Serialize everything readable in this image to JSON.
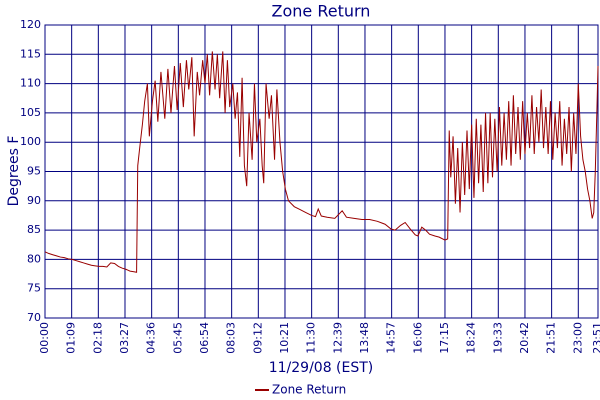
{
  "chart_data": {
    "type": "line",
    "title": "Zone Return",
    "x_label": "11/29/08 (EST)",
    "y_label": "Degrees F",
    "grid": true,
    "legend": "bottom",
    "xlim": [
      0,
      1431
    ],
    "ylim": [
      70,
      120
    ],
    "yticks": [
      70,
      75,
      80,
      85,
      90,
      95,
      100,
      105,
      110,
      115,
      120
    ],
    "xticks": [
      {
        "value": 0,
        "label": "00:00"
      },
      {
        "value": 69,
        "label": "01:09"
      },
      {
        "value": 138,
        "label": "02:18"
      },
      {
        "value": 207,
        "label": "03:27"
      },
      {
        "value": 276,
        "label": "04:36"
      },
      {
        "value": 345,
        "label": "05:45"
      },
      {
        "value": 414,
        "label": "06:54"
      },
      {
        "value": 483,
        "label": "08:03"
      },
      {
        "value": 552,
        "label": "09:12"
      },
      {
        "value": 621,
        "label": "10:21"
      },
      {
        "value": 690,
        "label": "11:30"
      },
      {
        "value": 759,
        "label": "12:39"
      },
      {
        "value": 828,
        "label": "13:48"
      },
      {
        "value": 897,
        "label": "14:57"
      },
      {
        "value": 966,
        "label": "16:06"
      },
      {
        "value": 1035,
        "label": "17:15"
      },
      {
        "value": 1104,
        "label": "18:24"
      },
      {
        "value": 1173,
        "label": "19:33"
      },
      {
        "value": 1242,
        "label": "20:42"
      },
      {
        "value": 1311,
        "label": "21:51"
      },
      {
        "value": 1380,
        "label": "23:00"
      },
      {
        "value": 1431,
        "label": "23:51"
      }
    ],
    "x": [
      0,
      10,
      20,
      30,
      40,
      50,
      60,
      70,
      80,
      90,
      100,
      110,
      120,
      130,
      140,
      150,
      160,
      170,
      180,
      190,
      200,
      210,
      220,
      230,
      237,
      240,
      245,
      252,
      258,
      265,
      270,
      278,
      285,
      292,
      300,
      310,
      318,
      326,
      335,
      342,
      350,
      358,
      366,
      372,
      380,
      386,
      394,
      400,
      408,
      414,
      420,
      426,
      433,
      440,
      446,
      452,
      460,
      466,
      472,
      478,
      486,
      492,
      498,
      504,
      510,
      516,
      522,
      528,
      536,
      542,
      548,
      556,
      562,
      566,
      572,
      580,
      586,
      594,
      600,
      608,
      615,
      622,
      630,
      645,
      660,
      675,
      690,
      700,
      707,
      715,
      730,
      750,
      769,
      780,
      800,
      820,
      840,
      860,
      880,
      895,
      906,
      920,
      932,
      945,
      958,
      965,
      975,
      985,
      995,
      1009,
      1020,
      1035,
      1042,
      1046,
      1050,
      1056,
      1062,
      1068,
      1074,
      1080,
      1086,
      1092,
      1098,
      1104,
      1110,
      1116,
      1122,
      1128,
      1134,
      1140,
      1146,
      1152,
      1158,
      1164,
      1170,
      1176,
      1182,
      1188,
      1194,
      1200,
      1206,
      1212,
      1218,
      1224,
      1230,
      1236,
      1242,
      1248,
      1254,
      1260,
      1266,
      1272,
      1278,
      1284,
      1290,
      1296,
      1302,
      1308,
      1314,
      1320,
      1326,
      1332,
      1338,
      1344,
      1350,
      1356,
      1362,
      1368,
      1374,
      1380,
      1386,
      1392,
      1398,
      1404,
      1410,
      1416,
      1420,
      1424,
      1428,
      1431
    ],
    "series": [
      {
        "name": "Zone Return",
        "color": "#990000",
        "values": [
          81.3,
          81,
          80.8,
          80.6,
          80.4,
          80.3,
          80.1,
          80,
          79.8,
          79.6,
          79.4,
          79.2,
          79,
          78.9,
          78.8,
          78.8,
          78.7,
          79.4,
          79.3,
          78.8,
          78.5,
          78.3,
          78,
          77.9,
          77.8,
          96,
          99,
          103,
          107,
          110,
          101,
          107,
          110.5,
          103.5,
          112,
          104,
          112.5,
          105,
          113,
          105.5,
          113.5,
          106,
          114,
          109,
          114.5,
          101,
          112,
          108,
          114,
          110,
          115,
          108,
          115.5,
          109,
          115,
          107.5,
          115.5,
          105,
          114,
          106,
          110,
          104,
          108.5,
          97.5,
          111,
          96,
          92.5,
          105,
          97,
          110,
          100,
          104,
          96,
          93,
          110,
          104,
          108,
          97,
          109,
          100,
          95,
          92,
          90,
          89,
          88.5,
          88,
          87.5,
          87.3,
          88.6,
          87.4,
          87.2,
          87,
          88.3,
          87.2,
          87,
          86.8,
          86.8,
          86.5,
          86,
          85.2,
          85,
          85.8,
          86.3,
          85.2,
          84.2,
          84,
          85.5,
          85,
          84.3,
          84,
          83.8,
          83.3,
          83.5,
          102,
          94,
          101,
          89.5,
          99,
          88,
          100,
          91,
          102,
          92,
          103,
          90.5,
          104,
          93,
          103,
          91.5,
          105,
          93,
          105,
          94,
          104,
          95,
          106,
          96,
          105,
          97,
          107,
          96,
          108,
          98,
          106,
          97,
          107,
          98,
          105,
          99,
          108,
          98,
          106,
          100,
          109,
          99,
          106,
          98,
          107,
          97,
          105,
          99,
          107,
          96,
          104,
          98,
          106,
          95,
          105,
          98,
          110,
          101,
          97,
          95,
          92,
          90,
          87,
          88,
          95,
          105,
          113
        ]
      }
    ]
  }
}
